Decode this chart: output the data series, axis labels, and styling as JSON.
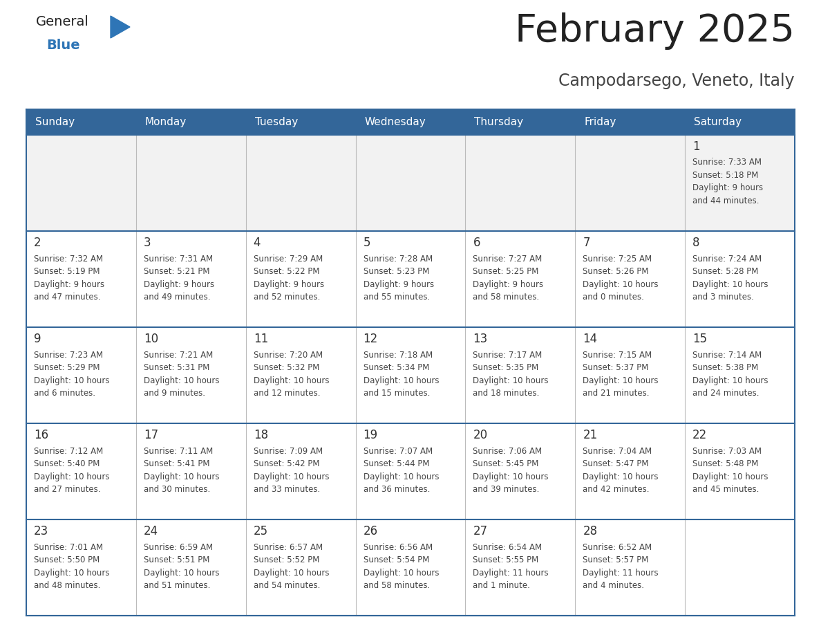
{
  "title": "February 2025",
  "subtitle": "Campodarsego, Veneto, Italy",
  "days_of_week": [
    "Sunday",
    "Monday",
    "Tuesday",
    "Wednesday",
    "Thursday",
    "Friday",
    "Saturday"
  ],
  "header_bg": "#336699",
  "header_text": "#FFFFFF",
  "cell_bg_light": "#F2F2F2",
  "cell_bg_white": "#FFFFFF",
  "cell_border": "#336699",
  "day_num_color": "#333333",
  "info_color": "#444444",
  "title_color": "#222222",
  "subtitle_color": "#444444",
  "logo_general_color": "#222222",
  "logo_blue_color": "#2E75B6",
  "num_rows": 5,
  "num_cols": 7,
  "calendar_data": [
    [
      null,
      null,
      null,
      null,
      null,
      null,
      {
        "day": "1",
        "sunrise": "7:33 AM",
        "sunset": "5:18 PM",
        "daylight": "9 hours",
        "daylight2": "and 44 minutes."
      }
    ],
    [
      {
        "day": "2",
        "sunrise": "7:32 AM",
        "sunset": "5:19 PM",
        "daylight": "9 hours",
        "daylight2": "and 47 minutes."
      },
      {
        "day": "3",
        "sunrise": "7:31 AM",
        "sunset": "5:21 PM",
        "daylight": "9 hours",
        "daylight2": "and 49 minutes."
      },
      {
        "day": "4",
        "sunrise": "7:29 AM",
        "sunset": "5:22 PM",
        "daylight": "9 hours",
        "daylight2": "and 52 minutes."
      },
      {
        "day": "5",
        "sunrise": "7:28 AM",
        "sunset": "5:23 PM",
        "daylight": "9 hours",
        "daylight2": "and 55 minutes."
      },
      {
        "day": "6",
        "sunrise": "7:27 AM",
        "sunset": "5:25 PM",
        "daylight": "9 hours",
        "daylight2": "and 58 minutes."
      },
      {
        "day": "7",
        "sunrise": "7:25 AM",
        "sunset": "5:26 PM",
        "daylight": "10 hours",
        "daylight2": "and 0 minutes."
      },
      {
        "day": "8",
        "sunrise": "7:24 AM",
        "sunset": "5:28 PM",
        "daylight": "10 hours",
        "daylight2": "and 3 minutes."
      }
    ],
    [
      {
        "day": "9",
        "sunrise": "7:23 AM",
        "sunset": "5:29 PM",
        "daylight": "10 hours",
        "daylight2": "and 6 minutes."
      },
      {
        "day": "10",
        "sunrise": "7:21 AM",
        "sunset": "5:31 PM",
        "daylight": "10 hours",
        "daylight2": "and 9 minutes."
      },
      {
        "day": "11",
        "sunrise": "7:20 AM",
        "sunset": "5:32 PM",
        "daylight": "10 hours",
        "daylight2": "and 12 minutes."
      },
      {
        "day": "12",
        "sunrise": "7:18 AM",
        "sunset": "5:34 PM",
        "daylight": "10 hours",
        "daylight2": "and 15 minutes."
      },
      {
        "day": "13",
        "sunrise": "7:17 AM",
        "sunset": "5:35 PM",
        "daylight": "10 hours",
        "daylight2": "and 18 minutes."
      },
      {
        "day": "14",
        "sunrise": "7:15 AM",
        "sunset": "5:37 PM",
        "daylight": "10 hours",
        "daylight2": "and 21 minutes."
      },
      {
        "day": "15",
        "sunrise": "7:14 AM",
        "sunset": "5:38 PM",
        "daylight": "10 hours",
        "daylight2": "and 24 minutes."
      }
    ],
    [
      {
        "day": "16",
        "sunrise": "7:12 AM",
        "sunset": "5:40 PM",
        "daylight": "10 hours",
        "daylight2": "and 27 minutes."
      },
      {
        "day": "17",
        "sunrise": "7:11 AM",
        "sunset": "5:41 PM",
        "daylight": "10 hours",
        "daylight2": "and 30 minutes."
      },
      {
        "day": "18",
        "sunrise": "7:09 AM",
        "sunset": "5:42 PM",
        "daylight": "10 hours",
        "daylight2": "and 33 minutes."
      },
      {
        "day": "19",
        "sunrise": "7:07 AM",
        "sunset": "5:44 PM",
        "daylight": "10 hours",
        "daylight2": "and 36 minutes."
      },
      {
        "day": "20",
        "sunrise": "7:06 AM",
        "sunset": "5:45 PM",
        "daylight": "10 hours",
        "daylight2": "and 39 minutes."
      },
      {
        "day": "21",
        "sunrise": "7:04 AM",
        "sunset": "5:47 PM",
        "daylight": "10 hours",
        "daylight2": "and 42 minutes."
      },
      {
        "day": "22",
        "sunrise": "7:03 AM",
        "sunset": "5:48 PM",
        "daylight": "10 hours",
        "daylight2": "and 45 minutes."
      }
    ],
    [
      {
        "day": "23",
        "sunrise": "7:01 AM",
        "sunset": "5:50 PM",
        "daylight": "10 hours",
        "daylight2": "and 48 minutes."
      },
      {
        "day": "24",
        "sunrise": "6:59 AM",
        "sunset": "5:51 PM",
        "daylight": "10 hours",
        "daylight2": "and 51 minutes."
      },
      {
        "day": "25",
        "sunrise": "6:57 AM",
        "sunset": "5:52 PM",
        "daylight": "10 hours",
        "daylight2": "and 54 minutes."
      },
      {
        "day": "26",
        "sunrise": "6:56 AM",
        "sunset": "5:54 PM",
        "daylight": "10 hours",
        "daylight2": "and 58 minutes."
      },
      {
        "day": "27",
        "sunrise": "6:54 AM",
        "sunset": "5:55 PM",
        "daylight": "11 hours",
        "daylight2": "and 1 minute."
      },
      {
        "day": "28",
        "sunrise": "6:52 AM",
        "sunset": "5:57 PM",
        "daylight": "11 hours",
        "daylight2": "and 4 minutes."
      },
      null
    ]
  ]
}
